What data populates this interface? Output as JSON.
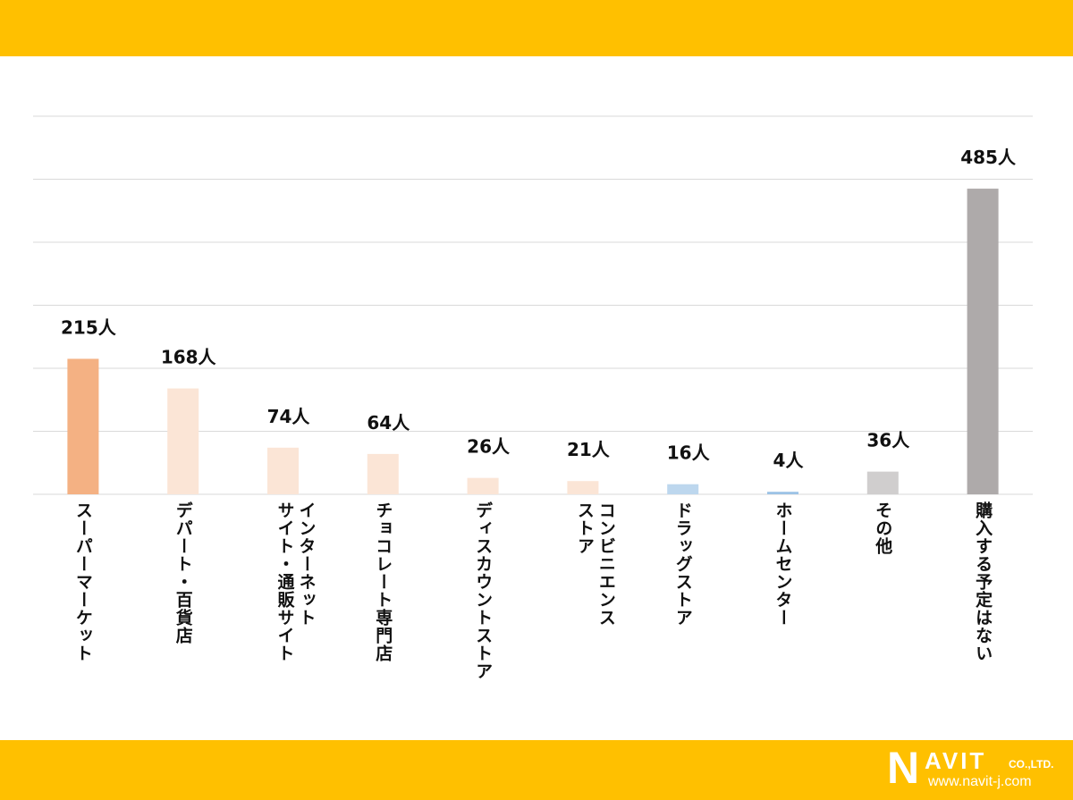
{
  "colors": {
    "band": "#FFC000",
    "grid": "#D9D9D9"
  },
  "logo": {
    "name": "NAVIT",
    "company_suffix": "CO.,LTD.",
    "url": "www.navit-j.com"
  },
  "chart_data": {
    "type": "bar",
    "categories": [
      "スーパーマーケット",
      "デパート・百貨店",
      "インターネット\nサイト・通販サイト",
      "チョコレート専門店",
      "ディスカウントストア",
      "コンビニエンス\nストア",
      "ドラッグストア",
      "ホームセンター",
      "その他",
      "購入する予定はない"
    ],
    "values": [
      215,
      168,
      74,
      64,
      26,
      21,
      16,
      4,
      36,
      485
    ],
    "data_labels": [
      "215人",
      "168人",
      "74人",
      "64人",
      "26人",
      "21人",
      "16人",
      "4人",
      "36人",
      "485人"
    ],
    "bar_colors": [
      "#F4B183",
      "#FBE5D6",
      "#FBE5D6",
      "#FBE5D6",
      "#FBE5D6",
      "#FBE5D6",
      "#BDD7EE",
      "#9DC3E6",
      "#D0CECE",
      "#AEAAAA"
    ],
    "ylim": [
      0,
      600
    ],
    "grid": true,
    "y_axis_visible": false
  }
}
